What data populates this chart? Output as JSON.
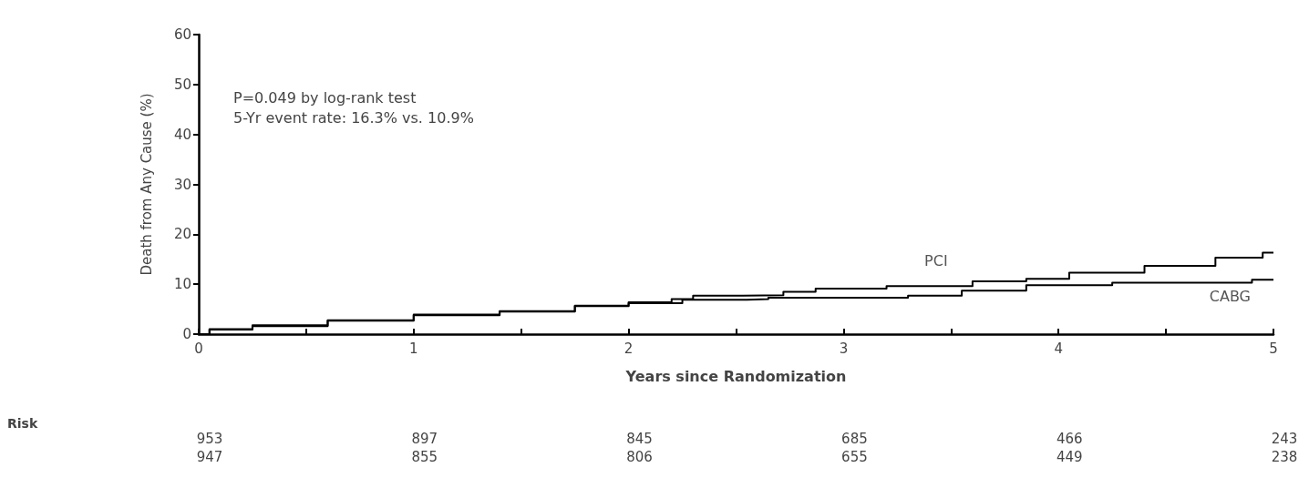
{
  "chart_data": {
    "type": "step",
    "ylabel": "Death from Any Cause (%)",
    "xlabel": "Years since Randomization",
    "xlim": [
      0,
      5
    ],
    "xticks": [
      0,
      {
        "value": 0.5,
        "label": null
      },
      1,
      {
        "value": 1.5,
        "label": null
      },
      2,
      {
        "value": 2.5,
        "label": null
      },
      3,
      {
        "value": 3.5,
        "label": null
      },
      4,
      {
        "value": 4.5,
        "label": null
      },
      5
    ],
    "ylim": [
      0,
      60
    ],
    "yticks": [
      0,
      10,
      20,
      30,
      40,
      50,
      60
    ],
    "grid": false,
    "legend": false,
    "marker": "none",
    "line_style": "solid",
    "series": [
      {
        "name": "PCI",
        "color": "#000000",
        "x": [
          0,
          0.05,
          0.25,
          0.6,
          1.0,
          1.4,
          1.75,
          2.0,
          2.2,
          2.3,
          2.53,
          2.72,
          2.87,
          3.2,
          3.6,
          3.85,
          4.05,
          4.4,
          4.73,
          4.95,
          5
        ],
        "values": [
          0,
          1.0,
          1.8,
          2.8,
          3.9,
          4.6,
          5.7,
          6.4,
          7.0,
          7.7,
          7.8,
          8.5,
          9.1,
          9.6,
          10.6,
          11.1,
          12.3,
          13.7,
          15.3,
          16.3,
          16.3
        ]
      },
      {
        "name": "CABG",
        "color": "#000000",
        "x": [
          0,
          0.05,
          0.25,
          0.6,
          1.0,
          1.4,
          1.75,
          2.0,
          2.25,
          2.55,
          2.65,
          3.3,
          3.55,
          3.85,
          4.25,
          4.9,
          5
        ],
        "values": [
          0,
          0.9,
          1.6,
          2.7,
          3.8,
          4.5,
          5.6,
          6.2,
          6.9,
          7.0,
          7.3,
          7.7,
          8.7,
          9.8,
          10.3,
          10.9,
          10.9
        ]
      }
    ],
    "annotations": [
      "P=0.049 by log-rank test",
      "5-Yr event rate: 16.3% vs. 10.9%",
      "Risk",
      "953 897 845 685 466 243",
      "947 855 806 655 449 238"
    ]
  }
}
